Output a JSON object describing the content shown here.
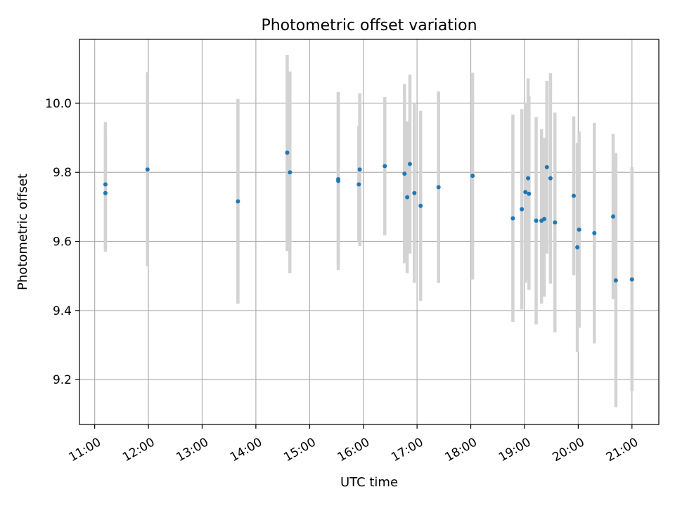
{
  "chart_data": {
    "type": "scatter",
    "title": "Photometric offset variation",
    "xlabel": "UTC time",
    "ylabel": "Photometric offset",
    "xlim": [
      "10:43",
      "21:30"
    ],
    "ylim": [
      9.07,
      10.185
    ],
    "grid": true,
    "x_ticks": [
      "11:00",
      "12:00",
      "13:00",
      "14:00",
      "15:00",
      "16:00",
      "17:00",
      "18:00",
      "19:00",
      "20:00",
      "21:00"
    ],
    "y_ticks": [
      9.2,
      9.4,
      9.6,
      9.8,
      10.0
    ],
    "y_tick_labels": [
      "9.2",
      "9.4",
      "9.6",
      "9.8",
      "10.0"
    ],
    "colors": {
      "points": "#1f77b4",
      "errorbars": "#d3d3d3",
      "grid": "#b0b0b0"
    },
    "points": [
      {
        "t": "11:12",
        "y": 9.765,
        "lo": 9.58,
        "hi": 9.945
      },
      {
        "t": "11:12",
        "y": 9.74,
        "lo": 9.57,
        "hi": 9.91
      },
      {
        "t": "11:59",
        "y": 9.808,
        "lo": 9.528,
        "hi": 10.09
      },
      {
        "t": "13:40",
        "y": 9.716,
        "lo": 9.42,
        "hi": 10.012
      },
      {
        "t": "14:35",
        "y": 9.857,
        "lo": 9.572,
        "hi": 10.14
      },
      {
        "t": "14:38",
        "y": 9.8,
        "lo": 9.508,
        "hi": 10.092
      },
      {
        "t": "15:32",
        "y": 9.775,
        "lo": 9.517,
        "hi": 10.033
      },
      {
        "t": "15:32",
        "y": 9.78,
        "lo": 9.53,
        "hi": 10.03
      },
      {
        "t": "15:55",
        "y": 9.765,
        "lo": 9.6,
        "hi": 9.935
      },
      {
        "t": "15:56",
        "y": 9.808,
        "lo": 9.587,
        "hi": 10.029
      },
      {
        "t": "16:24",
        "y": 9.818,
        "lo": 9.618,
        "hi": 10.018
      },
      {
        "t": "16:46",
        "y": 9.796,
        "lo": 9.537,
        "hi": 10.056
      },
      {
        "t": "16:49",
        "y": 9.728,
        "lo": 9.508,
        "hi": 9.948
      },
      {
        "t": "16:52",
        "y": 9.824,
        "lo": 9.565,
        "hi": 10.083
      },
      {
        "t": "16:57",
        "y": 9.74,
        "lo": 9.48,
        "hi": 10.0
      },
      {
        "t": "17:04",
        "y": 9.703,
        "lo": 9.428,
        "hi": 9.978
      },
      {
        "t": "17:24",
        "y": 9.757,
        "lo": 9.48,
        "hi": 10.034
      },
      {
        "t": "18:02",
        "y": 9.79,
        "lo": 9.49,
        "hi": 10.088
      },
      {
        "t": "18:47",
        "y": 9.667,
        "lo": 9.367,
        "hi": 9.967
      },
      {
        "t": "18:57",
        "y": 9.693,
        "lo": 9.403,
        "hi": 9.983
      },
      {
        "t": "19:01",
        "y": 9.743,
        "lo": 9.48,
        "hi": 10.0
      },
      {
        "t": "19:04",
        "y": 9.783,
        "lo": 9.49,
        "hi": 10.072
      },
      {
        "t": "19:05",
        "y": 9.738,
        "lo": 9.46,
        "hi": 10.02
      },
      {
        "t": "19:13",
        "y": 9.66,
        "lo": 9.36,
        "hi": 9.96
      },
      {
        "t": "19:19",
        "y": 9.66,
        "lo": 9.42,
        "hi": 9.925
      },
      {
        "t": "19:22",
        "y": 9.665,
        "lo": 9.44,
        "hi": 9.9
      },
      {
        "t": "19:25",
        "y": 9.815,
        "lo": 9.565,
        "hi": 10.065
      },
      {
        "t": "19:29",
        "y": 9.783,
        "lo": 9.478,
        "hi": 10.087
      },
      {
        "t": "19:34",
        "y": 9.655,
        "lo": 9.337,
        "hi": 9.973
      },
      {
        "t": "19:55",
        "y": 9.732,
        "lo": 9.502,
        "hi": 9.962
      },
      {
        "t": "19:59",
        "y": 9.583,
        "lo": 9.28,
        "hi": 9.885
      },
      {
        "t": "20:01",
        "y": 9.634,
        "lo": 9.35,
        "hi": 9.918
      },
      {
        "t": "20:18",
        "y": 9.624,
        "lo": 9.305,
        "hi": 9.943
      },
      {
        "t": "20:39",
        "y": 9.672,
        "lo": 9.433,
        "hi": 9.911
      },
      {
        "t": "20:42",
        "y": 9.487,
        "lo": 9.12,
        "hi": 9.856
      },
      {
        "t": "21:00",
        "y": 9.49,
        "lo": 9.167,
        "hi": 9.815
      }
    ]
  }
}
